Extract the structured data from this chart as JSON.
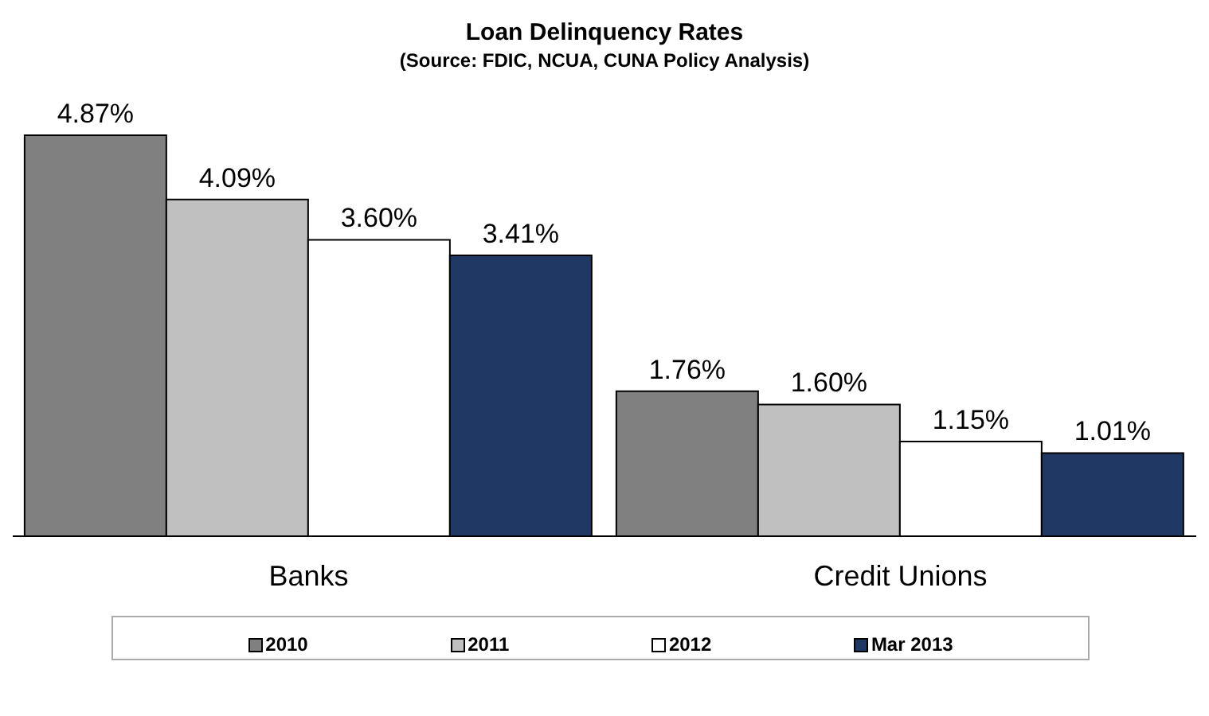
{
  "chart_data": {
    "type": "bar",
    "title": "Loan Delinquency Rates",
    "subtitle": "(Source: FDIC, NCUA, CUNA Policy Analysis)",
    "categories": [
      "Banks",
      "Credit Unions"
    ],
    "series": [
      {
        "name": "2010",
        "color": "#808080",
        "values": [
          4.87,
          1.76
        ],
        "value_labels": [
          "4.87%",
          "1.76%"
        ]
      },
      {
        "name": "2011",
        "color": "#c0c0c0",
        "values": [
          4.09,
          1.6
        ],
        "value_labels": [
          "4.09%",
          "1.60%"
        ]
      },
      {
        "name": "2012",
        "color": "#ffffff",
        "values": [
          3.6,
          1.15
        ],
        "value_labels": [
          "3.60%",
          "1.15%"
        ]
      },
      {
        "name": "Mar 2013",
        "color": "#1f3864",
        "values": [
          3.41,
          1.01
        ],
        "value_labels": [
          "3.41%",
          "1.01%"
        ]
      }
    ],
    "legend": "bottom",
    "grid": false
  }
}
